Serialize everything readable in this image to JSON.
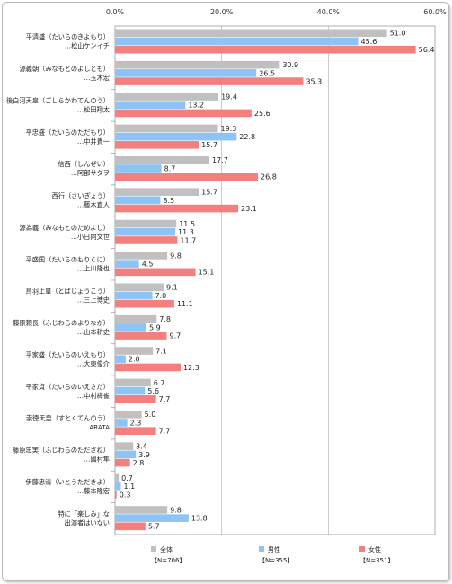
{
  "chart_data": {
    "type": "bar",
    "orientation": "horizontal",
    "xlim": [
      0,
      60
    ],
    "ticks": [
      "0.0%",
      "20.0%",
      "40.0%",
      "60.0%"
    ],
    "tick_values": [
      0,
      20,
      40,
      60
    ],
    "grid": true,
    "legend_position": "bottom",
    "categories": [
      [
        "平清盛（たいらのきよもり）",
        "…松山ケンイチ"
      ],
      [
        "源義朝（みなもとのよしとも）",
        "…玉木宏"
      ],
      [
        "後白河天皇（ごしらかわてんのう）",
        "…松田翔太"
      ],
      [
        "平忠盛（たいらのただもり）",
        "…中井貴一"
      ],
      [
        "信西（しんぜい）",
        "…阿部サダヲ"
      ],
      [
        "西行（さいぎょう）",
        "…藤木直人"
      ],
      [
        "源為義（みなもとのためよし）",
        "…小日向文世"
      ],
      [
        "平盛国（たいらのもりくに）",
        "…上川隆也"
      ],
      [
        "鳥羽上皇（とばじょうこう）",
        "…三上博史"
      ],
      [
        "藤原頼長（ふじわらのよりなが）",
        "…山本耕史"
      ],
      [
        "平家盛（たいらのいえもり）",
        "…大東俊介"
      ],
      [
        "平家貞（たいらのいえさだ）",
        "…中村梅雀"
      ],
      [
        "崇徳天皇（すとくてんのう）",
        "…ARATA"
      ],
      [
        "藤原忠実（ふじわらのただざね）",
        "…國村隼"
      ],
      [
        "伊藤忠清（いとうただきよ）",
        "…藤本隆宏"
      ],
      [
        "特に「楽しみ」な",
        "出演者はいない"
      ]
    ],
    "series": [
      {
        "name": "全体",
        "n": "【N=706】",
        "color": "#c0c0c0",
        "values": [
          51.0,
          30.9,
          19.4,
          19.3,
          17.7,
          15.7,
          11.5,
          9.8,
          9.1,
          7.8,
          7.1,
          6.7,
          5.0,
          3.4,
          0.7,
          9.8
        ]
      },
      {
        "name": "男性",
        "n": "【N=355】",
        "color": "#8ec3f5",
        "values": [
          45.6,
          26.5,
          13.2,
          22.8,
          8.7,
          8.5,
          11.3,
          4.5,
          7.0,
          5.9,
          2.0,
          5.6,
          2.3,
          3.9,
          1.1,
          13.8
        ]
      },
      {
        "name": "女性",
        "n": "【N=351】",
        "color": "#f47f7f",
        "values": [
          56.4,
          35.3,
          25.6,
          15.7,
          26.8,
          23.1,
          11.7,
          15.1,
          11.1,
          9.7,
          12.3,
          7.7,
          7.7,
          2.8,
          0.3,
          5.7
        ]
      }
    ]
  }
}
